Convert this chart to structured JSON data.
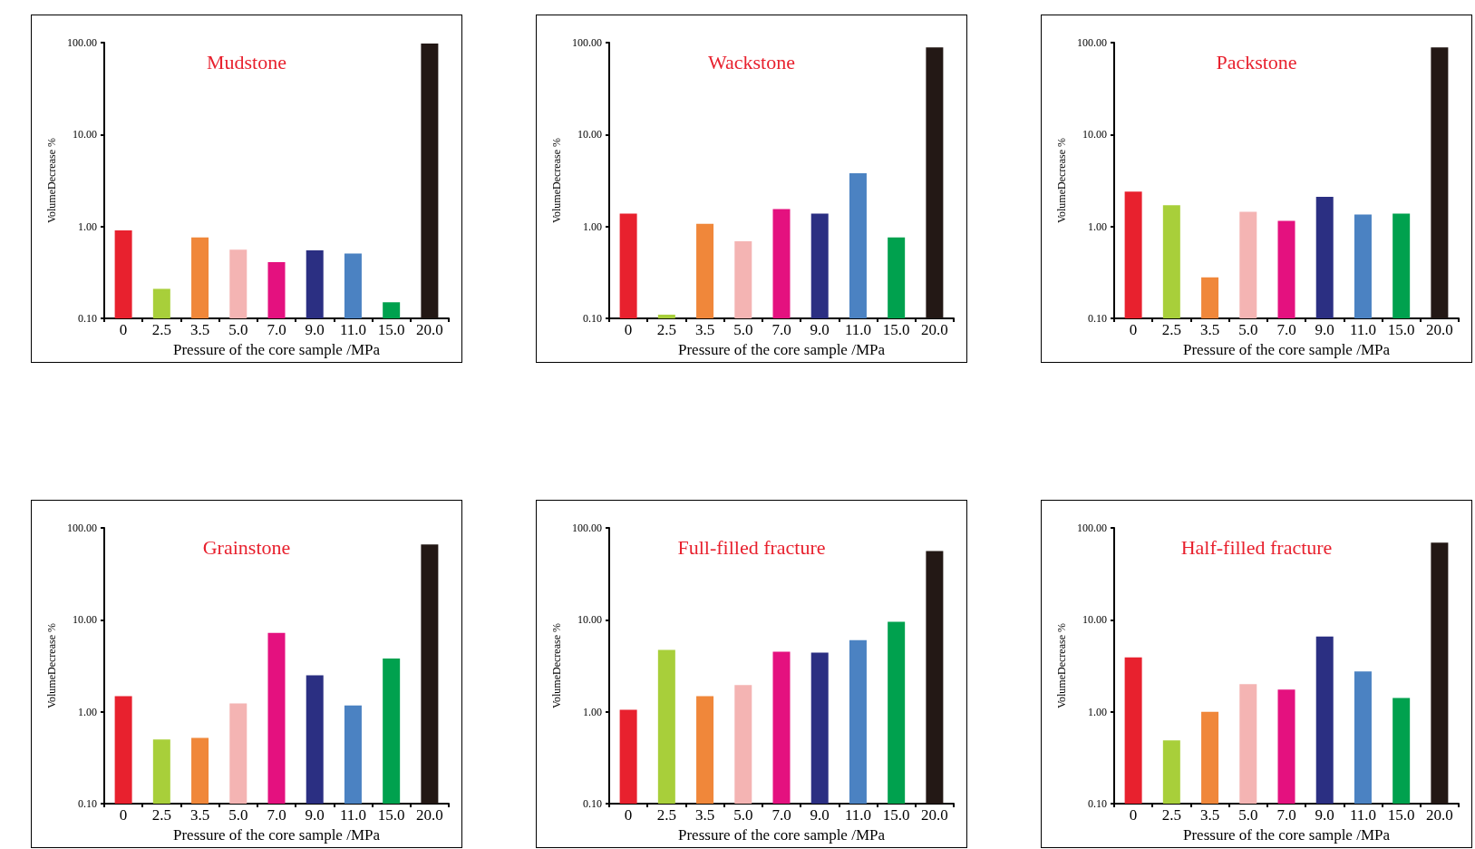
{
  "chart_data": [
    {
      "type": "bar",
      "title": "Mudstone",
      "xlabel": "Pressure of the core sample /MPa",
      "ylabel": "VolumeDecrease %",
      "categories": [
        "0",
        "2.5",
        "3.5",
        "5.0",
        "7.0",
        "9.0",
        "11.0",
        "15.0",
        "20.0"
      ],
      "values": [
        0.91,
        0.21,
        0.76,
        0.56,
        0.41,
        0.55,
        0.51,
        0.15,
        98
      ],
      "colors": [
        "#e8212e",
        "#a8cf3a",
        "#f0873a",
        "#f4b4b3",
        "#e4117f",
        "#2b2f82",
        "#4b82c2",
        "#00a14e",
        "#231815"
      ],
      "log": true,
      "ylim": [
        0.1,
        100
      ],
      "yticks": [
        {
          "value": 0.1,
          "label": "0.10"
        },
        {
          "value": 1,
          "label": "1.00"
        },
        {
          "value": 10,
          "label": "10.00"
        },
        {
          "value": 100,
          "label": "100.00"
        }
      ],
      "grid": false
    },
    {
      "type": "bar",
      "title": "Wackstone",
      "xlabel": "Pressure of the core sample /MPa",
      "ylabel": "VolumeDecrease %",
      "categories": [
        "0",
        "2.5",
        "3.5",
        "5.0",
        "7.0",
        "9.0",
        "11.0",
        "15.0",
        "20.0"
      ],
      "values": [
        1.38,
        0.11,
        1.07,
        0.69,
        1.55,
        1.38,
        3.8,
        0.76,
        89
      ],
      "colors": [
        "#e8212e",
        "#a8cf3a",
        "#f0873a",
        "#f4b4b3",
        "#e4117f",
        "#2b2f82",
        "#4b82c2",
        "#00a14e",
        "#231815"
      ],
      "log": true,
      "ylim": [
        0.1,
        100
      ],
      "yticks": [
        {
          "value": 0.1,
          "label": "0.10"
        },
        {
          "value": 1,
          "label": "1.00"
        },
        {
          "value": 10,
          "label": "10.00"
        },
        {
          "value": 100,
          "label": "100.00"
        }
      ],
      "grid": false
    },
    {
      "type": "bar",
      "title": "Packstone",
      "xlabel": "Pressure of the core sample /MPa",
      "ylabel": "VolumeDecrease %",
      "categories": [
        "0",
        "2.5",
        "3.5",
        "5.0",
        "7.0",
        "9.0",
        "11.0",
        "15.0",
        "20.0"
      ],
      "values": [
        2.4,
        1.7,
        0.28,
        1.45,
        1.15,
        2.1,
        1.35,
        1.38,
        89
      ],
      "colors": [
        "#e8212e",
        "#a8cf3a",
        "#f0873a",
        "#f4b4b3",
        "#e4117f",
        "#2b2f82",
        "#4b82c2",
        "#00a14e",
        "#231815"
      ],
      "log": true,
      "ylim": [
        0.1,
        100
      ],
      "yticks": [
        {
          "value": 0.1,
          "label": "0.10"
        },
        {
          "value": 1,
          "label": "1.00"
        },
        {
          "value": 10,
          "label": "10.00"
        },
        {
          "value": 100,
          "label": "100.00"
        }
      ],
      "grid": false
    },
    {
      "type": "bar",
      "title": "Grainstone",
      "xlabel": "Pressure of the core sample /MPa",
      "ylabel": "VolumeDecrease %",
      "categories": [
        "0",
        "2.5",
        "3.5",
        "5.0",
        "7.0",
        "9.0",
        "11.0",
        "15.0",
        "20.0"
      ],
      "values": [
        1.48,
        0.5,
        0.52,
        1.23,
        7.2,
        2.5,
        1.17,
        3.8,
        66
      ],
      "colors": [
        "#e8212e",
        "#a8cf3a",
        "#f0873a",
        "#f4b4b3",
        "#e4117f",
        "#2b2f82",
        "#4b82c2",
        "#00a14e",
        "#231815"
      ],
      "log": true,
      "ylim": [
        0.1,
        100
      ],
      "yticks": [
        {
          "value": 0.1,
          "label": "0.10"
        },
        {
          "value": 1,
          "label": "1.00"
        },
        {
          "value": 10,
          "label": "10.00"
        },
        {
          "value": 100,
          "label": "100.00"
        }
      ],
      "grid": false
    },
    {
      "type": "bar",
      "title": "Full-filled fracture",
      "xlabel": "Pressure of the core sample /MPa",
      "ylabel": "VolumeDecrease %",
      "categories": [
        "0",
        "2.5",
        "3.5",
        "5.0",
        "7.0",
        "9.0",
        "11.0",
        "15.0",
        "20.0"
      ],
      "values": [
        1.05,
        4.7,
        1.48,
        1.95,
        4.5,
        4.4,
        6.0,
        9.5,
        56
      ],
      "colors": [
        "#e8212e",
        "#a8cf3a",
        "#f0873a",
        "#f4b4b3",
        "#e4117f",
        "#2b2f82",
        "#4b82c2",
        "#00a14e",
        "#231815"
      ],
      "log": true,
      "ylim": [
        0.1,
        100
      ],
      "yticks": [
        {
          "value": 0.1,
          "label": "0.10"
        },
        {
          "value": 1,
          "label": "1.00"
        },
        {
          "value": 10,
          "label": "10.00"
        },
        {
          "value": 100,
          "label": "100.00"
        }
      ],
      "grid": false
    },
    {
      "type": "bar",
      "title": "Half-filled fracture",
      "xlabel": "Pressure of the core sample /MPa",
      "ylabel": "VolumeDecrease %",
      "categories": [
        "0",
        "2.5",
        "3.5",
        "5.0",
        "7.0",
        "9.0",
        "11.0",
        "15.0",
        "20.0"
      ],
      "values": [
        3.9,
        0.49,
        1.0,
        2.0,
        1.74,
        6.6,
        2.75,
        1.41,
        69
      ],
      "colors": [
        "#e8212e",
        "#a8cf3a",
        "#f0873a",
        "#f4b4b3",
        "#e4117f",
        "#2b2f82",
        "#4b82c2",
        "#00a14e",
        "#231815"
      ],
      "log": true,
      "ylim": [
        0.1,
        100
      ],
      "yticks": [
        {
          "value": 0.1,
          "label": "0.10"
        },
        {
          "value": 1,
          "label": "1.00"
        },
        {
          "value": 10,
          "label": "10.00"
        },
        {
          "value": 100,
          "label": "100.00"
        }
      ],
      "grid": false
    }
  ]
}
